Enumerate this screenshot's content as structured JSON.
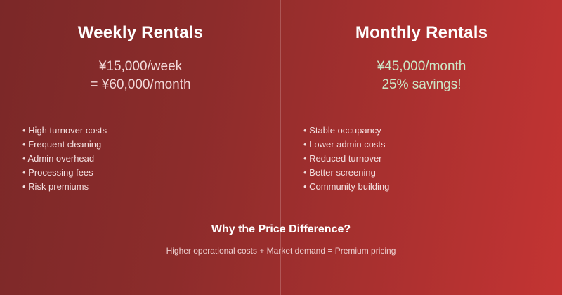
{
  "background": {
    "gradient_start": "#7b2828",
    "gradient_end": "#c43433",
    "divider_color": "rgba(255,235,235,0.22)"
  },
  "left_column": {
    "title": "Weekly Rentals",
    "price_line1": "¥15,000/week",
    "price_line2": "= ¥60,000/month",
    "price_color": "#f2d8d8",
    "bullets": [
      "• High turnover costs",
      "• Frequent cleaning",
      "• Admin overhead",
      "• Processing fees",
      "• Risk premiums"
    ]
  },
  "right_column": {
    "title": "Monthly Rentals",
    "price_line1": "¥45,000/month",
    "price_line2": "25% savings!",
    "price_color": "#cde6c6",
    "bullets": [
      "• Stable occupancy",
      "• Lower admin costs",
      "• Reduced turnover",
      "• Better screening",
      "• Community building"
    ]
  },
  "footer": {
    "title": "Why the Price Difference?",
    "subtitle": "Higher operational costs + Market demand = Premium pricing"
  }
}
